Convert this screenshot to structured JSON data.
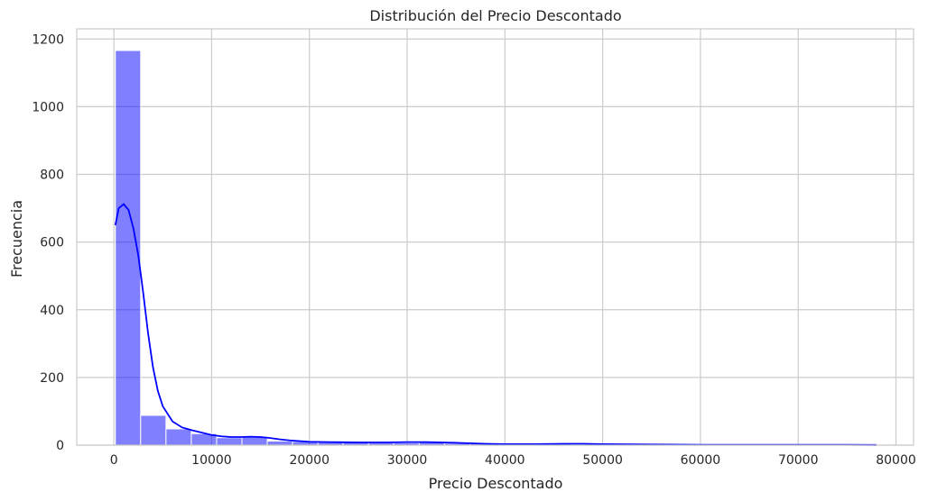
{
  "chart_data": {
    "type": "bar",
    "title": "Distribución del Precio Descontado",
    "xlabel": "Precio Descontado",
    "ylabel": "Frecuencia",
    "xlim": [
      -3800,
      81800
    ],
    "ylim": [
      0,
      1230
    ],
    "xticks": [
      0,
      10000,
      20000,
      30000,
      40000,
      50000,
      60000,
      70000,
      80000
    ],
    "yticks": [
      0,
      200,
      400,
      600,
      800,
      1000,
      1200
    ],
    "grid": true,
    "bins": {
      "start": 150,
      "width": 2590,
      "counts": [
        1166,
        88,
        48,
        34,
        22,
        26,
        12,
        11,
        9,
        8,
        7,
        7,
        8,
        6,
        4,
        2,
        3,
        5,
        2,
        1,
        1,
        1,
        1,
        1,
        1,
        1,
        1,
        1,
        1,
        1
      ]
    },
    "kde": {
      "x": [
        150,
        500,
        1000,
        1500,
        2000,
        2500,
        3000,
        3500,
        4000,
        4500,
        5000,
        6000,
        7000,
        8000,
        9000,
        10000,
        11000,
        12000,
        13000,
        14000,
        15000,
        16000,
        17000,
        18000,
        19000,
        20000,
        22000,
        25000,
        28000,
        30000,
        32000,
        35000,
        38000,
        40000,
        43000,
        46000,
        48000,
        50000,
        55000,
        60000,
        65000,
        70000,
        75000,
        78000
      ],
      "y": [
        650,
        700,
        712,
        695,
        640,
        560,
        450,
        330,
        230,
        160,
        115,
        70,
        52,
        44,
        37,
        30,
        26,
        24,
        24,
        25,
        24,
        21,
        17,
        14,
        12,
        10,
        9,
        8,
        8,
        9,
        9,
        7,
        4,
        3,
        3,
        4,
        4,
        3,
        2,
        1,
        1,
        1,
        1,
        0.5
      ]
    },
    "colors": {
      "bars": "#0000ff",
      "kde": "#0000ff",
      "grid": "#cccccc"
    }
  }
}
